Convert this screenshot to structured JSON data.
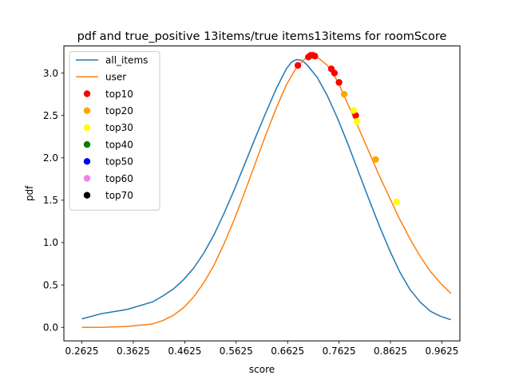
{
  "chart_data": {
    "type": "line",
    "title": "pdf and true_positive 13items/true items13items for roomScore",
    "xlabel": "score",
    "ylabel": "pdf",
    "xlim": [
      0.2275,
      0.9975
    ],
    "ylim": [
      -0.16,
      3.32
    ],
    "xticks": [
      0.2625,
      0.3625,
      0.4625,
      0.5625,
      0.6625,
      0.7625,
      0.8625,
      0.9625
    ],
    "xtick_labels": [
      "0.2625",
      "0.3625",
      "0.4625",
      "0.5625",
      "0.6625",
      "0.7625",
      "0.8625",
      "0.9625"
    ],
    "yticks": [
      0.0,
      0.5,
      1.0,
      1.5,
      2.0,
      2.5,
      3.0
    ],
    "ytick_labels": [
      "0.0",
      "0.5",
      "1.0",
      "1.5",
      "2.0",
      "2.5",
      "3.0"
    ],
    "grid": false,
    "legend_position": "top-left",
    "series": [
      {
        "name": "all_items",
        "kind": "line",
        "color": "#1f77b4",
        "x": [
          0.2625,
          0.3,
          0.35,
          0.4,
          0.42,
          0.44,
          0.46,
          0.48,
          0.5,
          0.52,
          0.54,
          0.56,
          0.58,
          0.6,
          0.62,
          0.64,
          0.66,
          0.67,
          0.68,
          0.69,
          0.7,
          0.72,
          0.74,
          0.76,
          0.78,
          0.8,
          0.82,
          0.84,
          0.86,
          0.88,
          0.9,
          0.92,
          0.94,
          0.96,
          0.98
        ],
        "y": [
          0.1,
          0.16,
          0.21,
          0.3,
          0.37,
          0.45,
          0.56,
          0.7,
          0.88,
          1.1,
          1.36,
          1.64,
          1.94,
          2.24,
          2.53,
          2.81,
          3.05,
          3.13,
          3.16,
          3.15,
          3.1,
          2.95,
          2.73,
          2.46,
          2.16,
          1.84,
          1.52,
          1.21,
          0.92,
          0.66,
          0.45,
          0.3,
          0.19,
          0.13,
          0.09
        ]
      },
      {
        "name": "user",
        "kind": "line",
        "color": "#ff7f0e",
        "x": [
          0.2625,
          0.3,
          0.35,
          0.4,
          0.42,
          0.44,
          0.46,
          0.48,
          0.5,
          0.52,
          0.54,
          0.56,
          0.58,
          0.6,
          0.62,
          0.64,
          0.66,
          0.68,
          0.7,
          0.71,
          0.72,
          0.74,
          0.76,
          0.78,
          0.8,
          0.82,
          0.84,
          0.86,
          0.88,
          0.9,
          0.92,
          0.94,
          0.96,
          0.98
        ],
        "y": [
          0.0,
          0.0,
          0.01,
          0.04,
          0.08,
          0.14,
          0.23,
          0.36,
          0.53,
          0.74,
          1.0,
          1.29,
          1.61,
          1.94,
          2.27,
          2.58,
          2.86,
          3.07,
          3.19,
          3.21,
          3.19,
          3.09,
          2.9,
          2.63,
          2.36,
          2.08,
          1.8,
          1.54,
          1.28,
          1.05,
          0.84,
          0.66,
          0.52,
          0.4
        ]
      },
      {
        "name": "top10",
        "kind": "scatter",
        "color": "#ff0000",
        "x": [
          0.6825,
          0.703,
          0.7075,
          0.7115,
          0.7155,
          0.7475,
          0.7535,
          0.7625,
          0.795
        ],
        "y": [
          3.09,
          3.19,
          3.21,
          3.21,
          3.2,
          3.05,
          3.0,
          2.89,
          2.5
        ]
      },
      {
        "name": "top20",
        "kind": "scatter",
        "color": "#ffa500",
        "x": [
          0.7725,
          0.8335
        ],
        "y": [
          2.75,
          1.98
        ]
      },
      {
        "name": "top30",
        "kind": "scatter",
        "color": "#ffff00",
        "x": [
          0.791,
          0.7975,
          0.8745
        ],
        "y": [
          2.56,
          2.43,
          1.48
        ]
      },
      {
        "name": "top40",
        "kind": "scatter",
        "color": "#008000",
        "x": [],
        "y": []
      },
      {
        "name": "top50",
        "kind": "scatter",
        "color": "#0000ff",
        "x": [],
        "y": []
      },
      {
        "name": "top60",
        "kind": "scatter",
        "color": "#ee82ee",
        "x": [],
        "y": []
      },
      {
        "name": "top70",
        "kind": "scatter",
        "color": "#000000",
        "x": [],
        "y": []
      }
    ]
  }
}
